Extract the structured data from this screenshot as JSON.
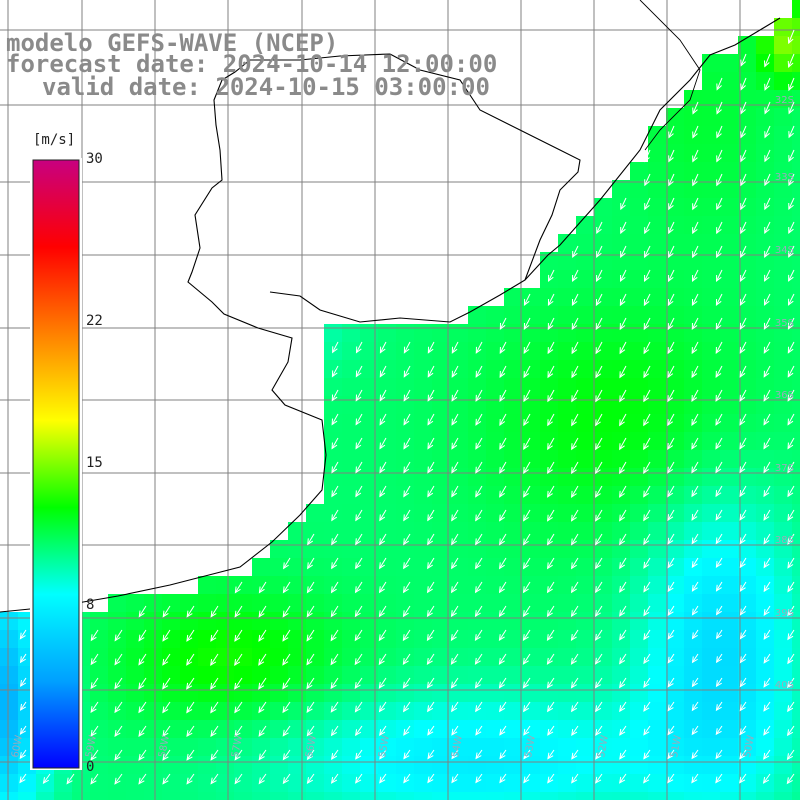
{
  "title": {
    "line1": "modelo GEFS-WAVE (NCEP)",
    "line2": "forecast date: 2024-10-14 12:00:00",
    "line3": "valid date: 2024-10-15 03:00:00"
  },
  "colorbar": {
    "unit": "[m/s]",
    "min": 0,
    "max": 30,
    "tick_values": [
      0,
      8,
      15,
      22,
      30
    ],
    "tick_labels": [
      "0",
      "8",
      "15",
      "22",
      "30"
    ],
    "colors": [
      "#0000ff",
      "#00a0ff",
      "#00ffff",
      "#00ff00",
      "#ffff00",
      "#ff8000",
      "#ff0000",
      "#c80080"
    ]
  },
  "map": {
    "field": "wind speed",
    "arrow_direction": "towards SW",
    "lat_labels": [
      "32S",
      "33S",
      "34S",
      "35S",
      "36S",
      "37S",
      "38S",
      "39S",
      "40S"
    ],
    "lon_labels": [
      "60W",
      "59W",
      "58W",
      "57W",
      "56W",
      "55W",
      "54W",
      "53W",
      "52W",
      "51W",
      "50W"
    ],
    "colors": {
      "land": "#ffffff",
      "coastline": "#000000",
      "grid": "#808080",
      "arrows": "#ffffff"
    }
  }
}
